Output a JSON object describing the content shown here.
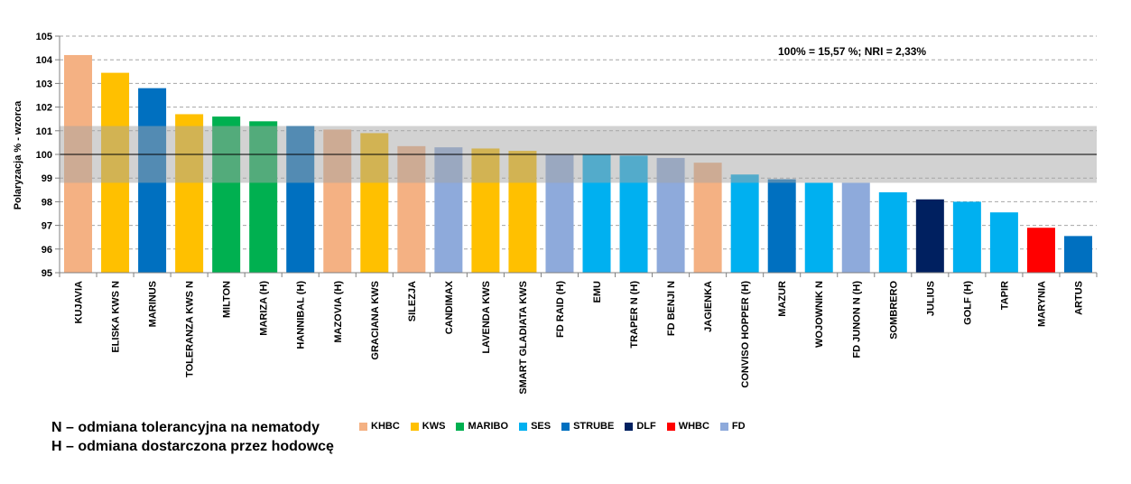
{
  "colors": {
    "KHBC": "#f4b183",
    "KWS": "#ffc000",
    "MARIBO": "#00b050",
    "SES": "#00b0f0",
    "STRUBE": "#0070c0",
    "DLF": "#002060",
    "WHBC": "#ff0000",
    "FD": "#8eaadb"
  },
  "notes": {
    "line1": "N – odmiana tolerancyjna na nematody",
    "line2": "H – odmiana dostarczona przez hodowcę"
  },
  "legend": [
    {
      "name": "KHBC",
      "color": "#f4b183"
    },
    {
      "name": "KWS",
      "color": "#ffc000"
    },
    {
      "name": "MARIBO",
      "color": "#00b050"
    },
    {
      "name": "SES",
      "color": "#00b0f0"
    },
    {
      "name": "STRUBE",
      "color": "#0070c0"
    },
    {
      "name": "DLF",
      "color": "#002060"
    },
    {
      "name": "WHBC",
      "color": "#ff0000"
    },
    {
      "name": "FD",
      "color": "#8eaadb"
    }
  ],
  "chart_data": {
    "type": "bar",
    "ylabel": "Polaryzacja % - wzorca",
    "xlabel": "",
    "annotation": "100% = 15,57 %;  NRI = 2,33%",
    "ylim": [
      95,
      105
    ],
    "yticks": [
      95,
      96,
      97,
      98,
      99,
      100,
      101,
      102,
      103,
      104,
      105
    ],
    "reference_line": 100,
    "band": [
      98.8,
      101.2
    ],
    "grid": true,
    "legend_position": "bottom",
    "categories": [
      "KUJAVIA",
      "ELISKA KWS N",
      "MARINUS",
      "TOLERANZA KWS N",
      "MILTON",
      "MARIZA (H)",
      "HANNIBAL (H)",
      "MAZOVIA (H)",
      "GRACIANA KWS",
      "SILEZJA",
      "CANDIMAX",
      "LAVENDA KWS",
      "SMART GLADIATA KWS",
      "FD RAID (H)",
      "EMU",
      "TRAPER N (H)",
      "FD BENJI N",
      "JAGIENKA",
      "CONVISO HOPPER (H)",
      "MAZUR",
      "WOJOWNIK N",
      "FD JUNON N (H)",
      "SOMBRERO",
      "JULIUS",
      "GOLF (H)",
      "TAPIR",
      "MARYNIA",
      "ARTUS"
    ],
    "values": [
      104.2,
      103.45,
      102.8,
      101.7,
      101.6,
      101.4,
      101.2,
      101.05,
      100.9,
      100.35,
      100.3,
      100.25,
      100.15,
      100.0,
      100.0,
      99.95,
      99.85,
      99.65,
      99.15,
      98.95,
      98.8,
      98.8,
      98.4,
      98.1,
      98.0,
      97.55,
      96.9,
      96.55
    ],
    "groups": [
      "KHBC",
      "KWS",
      "STRUBE",
      "KWS",
      "MARIBO",
      "MARIBO",
      "STRUBE",
      "KHBC",
      "KWS",
      "KHBC",
      "FD",
      "KWS",
      "KWS",
      "FD",
      "SES",
      "SES",
      "FD",
      "KHBC",
      "SES",
      "STRUBE",
      "SES",
      "FD",
      "SES",
      "DLF",
      "SES",
      "SES",
      "WHBC",
      "STRUBE"
    ]
  }
}
